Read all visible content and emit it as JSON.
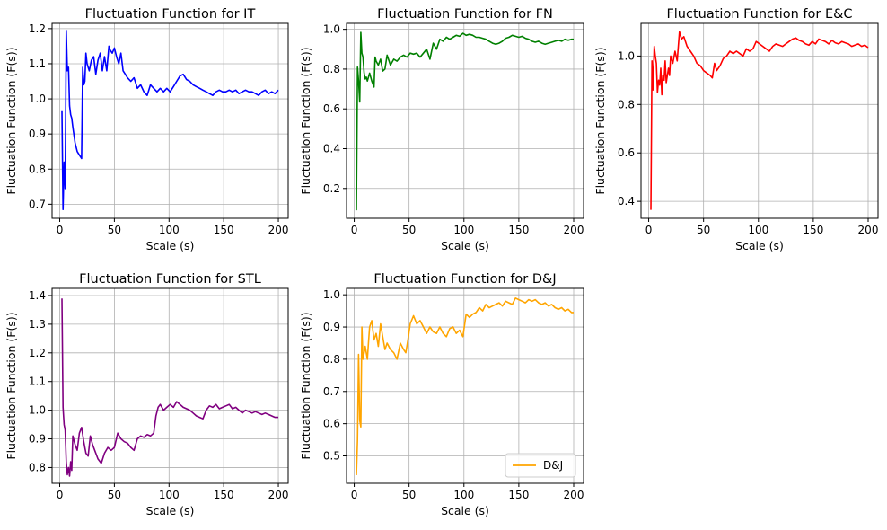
{
  "chart_data": [
    {
      "type": "line",
      "title": "Fluctuation Function for IT",
      "xlabel": "Scale (s)",
      "ylabel": "Fluctuation Function (F(s))",
      "xlim": [
        -7,
        209
      ],
      "ylim": [
        0.66,
        1.215
      ],
      "xticks": [
        0,
        50,
        100,
        150,
        200
      ],
      "yticks": [
        0.7,
        0.8,
        0.9,
        1.0,
        1.1,
        1.2
      ],
      "ytick_labels": [
        "0.7",
        "0.8",
        "0.9",
        "1.0",
        "1.1",
        "1.2"
      ],
      "grid": true,
      "color": "#0000ff",
      "legend": null,
      "series": [
        {
          "x": [
            2,
            3,
            4,
            5,
            6,
            7,
            8,
            9,
            10,
            11,
            12,
            14,
            16,
            18,
            20,
            21,
            22,
            23,
            24,
            25,
            27,
            29,
            31,
            33,
            35,
            37,
            39,
            41,
            43,
            45,
            46,
            48,
            50,
            52,
            54,
            56,
            58,
            60,
            62,
            65,
            68,
            71,
            74,
            77,
            80,
            83,
            86,
            89,
            92,
            95,
            98,
            101,
            104,
            107,
            110,
            113,
            116,
            119,
            122,
            125,
            128,
            131,
            134,
            137,
            140,
            143,
            146,
            149,
            152,
            155,
            158,
            161,
            164,
            167,
            170,
            173,
            176,
            179,
            182,
            185,
            188,
            191,
            194,
            197,
            200
          ],
          "y": [
            0.965,
            0.685,
            0.82,
            0.745,
            1.195,
            1.08,
            1.09,
            0.98,
            0.955,
            0.945,
            0.92,
            0.875,
            0.85,
            0.84,
            0.83,
            1.09,
            1.04,
            1.05,
            1.13,
            1.1,
            1.08,
            1.11,
            1.12,
            1.07,
            1.11,
            1.13,
            1.08,
            1.12,
            1.08,
            1.15,
            1.14,
            1.13,
            1.145,
            1.12,
            1.1,
            1.13,
            1.08,
            1.07,
            1.06,
            1.05,
            1.06,
            1.03,
            1.04,
            1.02,
            1.01,
            1.04,
            1.03,
            1.02,
            1.03,
            1.02,
            1.03,
            1.02,
            1.035,
            1.05,
            1.065,
            1.07,
            1.055,
            1.05,
            1.04,
            1.035,
            1.03,
            1.025,
            1.02,
            1.015,
            1.01,
            1.02,
            1.025,
            1.02,
            1.02,
            1.025,
            1.02,
            1.025,
            1.015,
            1.02,
            1.025,
            1.02,
            1.02,
            1.015,
            1.01,
            1.02,
            1.025,
            1.015,
            1.02,
            1.015,
            1.025
          ]
        }
      ]
    },
    {
      "type": "line",
      "title": "Fluctuation Function for FN",
      "xlabel": "Scale (s)",
      "ylabel": "Fluctuation Function (F(s))",
      "xlim": [
        -7,
        209
      ],
      "ylim": [
        0.05,
        1.03
      ],
      "xticks": [
        0,
        50,
        100,
        150,
        200
      ],
      "yticks": [
        0.2,
        0.4,
        0.6,
        0.8,
        1.0
      ],
      "ytick_labels": [
        "0.2",
        "0.4",
        "0.6",
        "0.8",
        "1.0"
      ],
      "grid": true,
      "color": "#008000",
      "legend": null,
      "series": [
        {
          "x": [
            2,
            3,
            4,
            5,
            6,
            7,
            8,
            9,
            10,
            11,
            12,
            14,
            16,
            18,
            19,
            20,
            22,
            24,
            26,
            28,
            30,
            33,
            36,
            39,
            42,
            45,
            48,
            51,
            54,
            57,
            60,
            63,
            66,
            69,
            72,
            75,
            78,
            81,
            84,
            87,
            90,
            93,
            96,
            99,
            102,
            105,
            108,
            111,
            114,
            117,
            120,
            123,
            126,
            129,
            132,
            135,
            138,
            141,
            144,
            147,
            150,
            153,
            156,
            159,
            162,
            165,
            168,
            171,
            174,
            177,
            180,
            183,
            186,
            189,
            192,
            195,
            198,
            200
          ],
          "y": [
            0.09,
            0.81,
            0.74,
            0.635,
            0.985,
            0.88,
            0.86,
            0.78,
            0.75,
            0.76,
            0.74,
            0.78,
            0.74,
            0.71,
            0.86,
            0.84,
            0.82,
            0.85,
            0.79,
            0.8,
            0.87,
            0.82,
            0.85,
            0.84,
            0.86,
            0.87,
            0.86,
            0.88,
            0.875,
            0.88,
            0.86,
            0.88,
            0.9,
            0.85,
            0.93,
            0.9,
            0.95,
            0.94,
            0.96,
            0.95,
            0.96,
            0.97,
            0.965,
            0.98,
            0.97,
            0.975,
            0.97,
            0.96,
            0.96,
            0.955,
            0.95,
            0.94,
            0.93,
            0.925,
            0.93,
            0.94,
            0.955,
            0.96,
            0.97,
            0.965,
            0.96,
            0.965,
            0.955,
            0.95,
            0.94,
            0.935,
            0.94,
            0.93,
            0.925,
            0.93,
            0.935,
            0.94,
            0.945,
            0.94,
            0.95,
            0.945,
            0.95,
            0.95
          ]
        }
      ]
    },
    {
      "type": "line",
      "title": "Fluctuation Function for E&C",
      "xlabel": "Scale (s)",
      "ylabel": "Fluctuation Function (F(s))",
      "xlim": [
        -7,
        209
      ],
      "ylim": [
        0.33,
        1.135
      ],
      "xticks": [
        0,
        50,
        100,
        150,
        200
      ],
      "yticks": [
        0.4,
        0.6,
        0.8,
        1.0
      ],
      "ytick_labels": [
        "0.4",
        "0.6",
        "0.8",
        "1.0"
      ],
      "grid": true,
      "color": "#ff0000",
      "legend": null,
      "series": [
        {
          "x": [
            2,
            3,
            4,
            5,
            6,
            7,
            8,
            9,
            10,
            11,
            12,
            13,
            14,
            15,
            16,
            18,
            19,
            20,
            22,
            24,
            26,
            28,
            30,
            32,
            35,
            38,
            41,
            44,
            47,
            50,
            53,
            56,
            58,
            60,
            62,
            65,
            68,
            71,
            74,
            77,
            80,
            83,
            86,
            89,
            92,
            95,
            98,
            101,
            104,
            107,
            110,
            113,
            116,
            119,
            122,
            125,
            128,
            131,
            134,
            137,
            140,
            143,
            146,
            149,
            152,
            155,
            158,
            161,
            164,
            167,
            170,
            173,
            176,
            179,
            182,
            185,
            188,
            191,
            194,
            197,
            200
          ],
          "y": [
            0.365,
            0.98,
            0.86,
            1.04,
            1.0,
            0.97,
            0.85,
            0.9,
            0.88,
            0.95,
            0.84,
            0.92,
            0.9,
            0.98,
            0.89,
            0.95,
            0.92,
            1.0,
            0.97,
            1.02,
            0.98,
            1.1,
            1.07,
            1.08,
            1.04,
            1.02,
            1.0,
            0.97,
            0.96,
            0.94,
            0.93,
            0.92,
            0.91,
            0.97,
            0.94,
            0.96,
            0.99,
            1.0,
            1.02,
            1.01,
            1.02,
            1.01,
            1.0,
            1.03,
            1.02,
            1.03,
            1.06,
            1.05,
            1.04,
            1.03,
            1.02,
            1.04,
            1.05,
            1.045,
            1.04,
            1.05,
            1.06,
            1.07,
            1.075,
            1.065,
            1.06,
            1.05,
            1.045,
            1.06,
            1.05,
            1.07,
            1.065,
            1.06,
            1.05,
            1.065,
            1.055,
            1.05,
            1.06,
            1.055,
            1.05,
            1.04,
            1.045,
            1.05,
            1.04,
            1.045,
            1.035
          ]
        }
      ]
    },
    {
      "type": "line",
      "title": "Fluctuation Function for STL",
      "xlabel": "Scale (s)",
      "ylabel": "Fluctuation Function (F(s))",
      "xlim": [
        -7,
        209
      ],
      "ylim": [
        0.745,
        1.425
      ],
      "xticks": [
        0,
        50,
        100,
        150,
        200
      ],
      "yticks": [
        0.8,
        0.9,
        1.0,
        1.1,
        1.2,
        1.3,
        1.4
      ],
      "ytick_labels": [
        "0.8",
        "0.9",
        "1.0",
        "1.1",
        "1.2",
        "1.3",
        "1.4"
      ],
      "grid": true,
      "color": "#800080",
      "legend": null,
      "series": [
        {
          "x": [
            2,
            3,
            4,
            5,
            6,
            7,
            8,
            9,
            10,
            11,
            12,
            14,
            16,
            18,
            20,
            22,
            24,
            26,
            28,
            30,
            32,
            35,
            38,
            41,
            44,
            47,
            50,
            53,
            56,
            59,
            62,
            65,
            68,
            71,
            74,
            77,
            80,
            83,
            86,
            88,
            90,
            92,
            95,
            98,
            101,
            104,
            107,
            110,
            113,
            116,
            119,
            122,
            125,
            128,
            131,
            134,
            137,
            140,
            143,
            146,
            149,
            152,
            155,
            158,
            161,
            164,
            167,
            170,
            173,
            176,
            179,
            182,
            185,
            188,
            191,
            194,
            197,
            200
          ],
          "y": [
            1.39,
            1.01,
            0.95,
            0.93,
            0.82,
            0.775,
            0.8,
            0.77,
            0.82,
            0.79,
            0.91,
            0.88,
            0.86,
            0.92,
            0.94,
            0.89,
            0.85,
            0.84,
            0.91,
            0.88,
            0.86,
            0.83,
            0.815,
            0.85,
            0.87,
            0.86,
            0.87,
            0.92,
            0.9,
            0.89,
            0.885,
            0.87,
            0.86,
            0.9,
            0.91,
            0.905,
            0.915,
            0.91,
            0.92,
            0.98,
            1.01,
            1.02,
            1.0,
            1.01,
            1.02,
            1.01,
            1.03,
            1.02,
            1.01,
            1.005,
            1.0,
            0.99,
            0.98,
            0.975,
            0.97,
            1.0,
            1.015,
            1.01,
            1.02,
            1.005,
            1.01,
            1.015,
            1.02,
            1.005,
            1.01,
            1.0,
            0.99,
            1.0,
            0.995,
            0.99,
            0.995,
            0.99,
            0.985,
            0.99,
            0.985,
            0.98,
            0.975,
            0.975
          ]
        }
      ]
    },
    {
      "type": "line",
      "title": "Fluctuation Function for D&J",
      "xlabel": "Scale (s)",
      "ylabel": "Fluctuation Function (F(s))",
      "xlim": [
        -7,
        209
      ],
      "ylim": [
        0.415,
        1.02
      ],
      "xticks": [
        0,
        50,
        100,
        150,
        200
      ],
      "yticks": [
        0.5,
        0.6,
        0.7,
        0.8,
        0.9,
        1.0
      ],
      "ytick_labels": [
        "0.5",
        "0.6",
        "0.7",
        "0.8",
        "0.9",
        "1.0"
      ],
      "grid": true,
      "color": "#ffa500",
      "legend": "lower right",
      "series": [
        {
          "name": "D&J",
          "x": [
            2,
            3,
            4,
            5,
            6,
            7,
            8,
            9,
            10,
            11,
            12,
            13,
            14,
            16,
            18,
            20,
            22,
            24,
            26,
            28,
            30,
            33,
            36,
            39,
            42,
            45,
            47,
            49,
            51,
            54,
            57,
            60,
            63,
            66,
            69,
            72,
            75,
            78,
            81,
            84,
            87,
            90,
            93,
            96,
            99,
            102,
            105,
            108,
            111,
            114,
            117,
            120,
            123,
            126,
            129,
            132,
            135,
            138,
            141,
            144,
            147,
            150,
            153,
            156,
            159,
            162,
            165,
            168,
            171,
            174,
            177,
            180,
            183,
            186,
            189,
            192,
            195,
            198,
            200
          ],
          "y": [
            0.44,
            0.55,
            0.815,
            0.61,
            0.59,
            0.9,
            0.8,
            0.82,
            0.84,
            0.82,
            0.8,
            0.85,
            0.9,
            0.92,
            0.86,
            0.88,
            0.84,
            0.91,
            0.87,
            0.83,
            0.85,
            0.83,
            0.82,
            0.8,
            0.85,
            0.83,
            0.82,
            0.86,
            0.91,
            0.935,
            0.91,
            0.92,
            0.9,
            0.88,
            0.9,
            0.885,
            0.88,
            0.9,
            0.88,
            0.87,
            0.895,
            0.9,
            0.88,
            0.89,
            0.87,
            0.94,
            0.93,
            0.94,
            0.945,
            0.96,
            0.95,
            0.97,
            0.96,
            0.965,
            0.97,
            0.975,
            0.965,
            0.98,
            0.975,
            0.97,
            0.99,
            0.985,
            0.98,
            0.975,
            0.985,
            0.98,
            0.985,
            0.975,
            0.97,
            0.975,
            0.965,
            0.97,
            0.96,
            0.955,
            0.96,
            0.95,
            0.955,
            0.945,
            0.945
          ]
        }
      ]
    }
  ]
}
